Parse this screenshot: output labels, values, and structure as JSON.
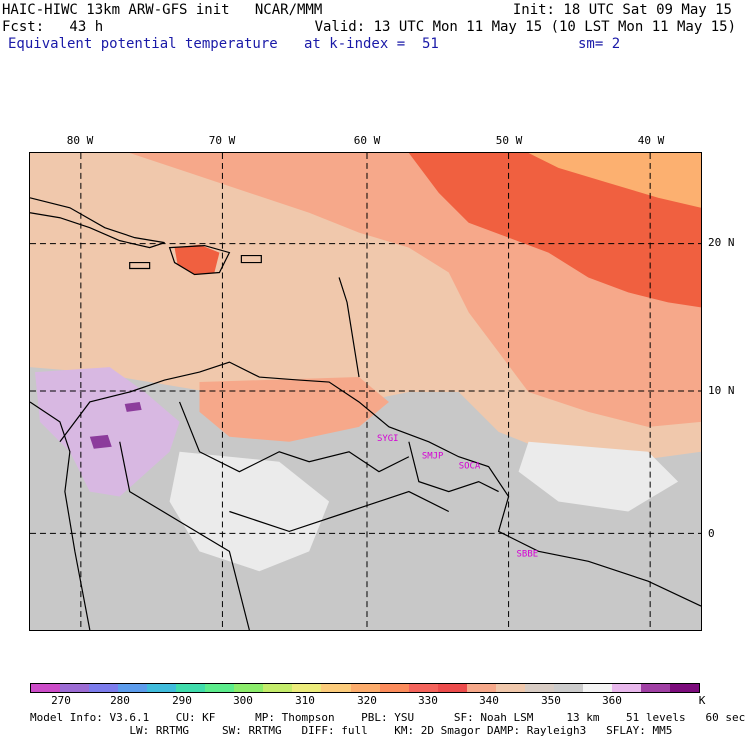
{
  "header": {
    "line1_left": "HAIC-HIWC 13km ARW-GFS init   NCAR/MMM",
    "line1_right": "Init: 18 UTC Sat 09 May 15",
    "line2_left": "Fcst:   43 h",
    "line2_right": "Valid: 13 UTC Mon 11 May 15 (10 LST Mon 11 May 15)",
    "field_name": "Equivalent potential temperature",
    "level_text": "at k-index =  51",
    "smooth_text": "sm= 2"
  },
  "map": {
    "lon_labels": [
      "80 W",
      "70 W",
      "60 W",
      "50 W",
      "40 W"
    ],
    "lat_labels": [
      "20 N",
      "10 N",
      "0"
    ],
    "stations": [
      "SYGI",
      "SMJP",
      "SOCA",
      "SBBE"
    ],
    "colors": {
      "background": "#c8c8c8",
      "warm_light": "#f0c8ac",
      "warm": "#f6a88a",
      "hot": "#f06040",
      "hottest": "#fcb070",
      "cool_light": "#ebebeb",
      "cool": "#d8b8e2",
      "cold": "#8c3c9c",
      "station_text": "#d400d4"
    }
  },
  "colorbar": {
    "colors": [
      "#cc4cc8",
      "#9c6cd4",
      "#7c7cec",
      "#5c9cec",
      "#40bcdc",
      "#40dcac",
      "#5cec8c",
      "#8cec6c",
      "#c4ec6c",
      "#ecec7c",
      "#fccc7c",
      "#fcac6c",
      "#fc8c5c",
      "#f4645c",
      "#ec4c4c",
      "#f6a88a",
      "#f0c8ac",
      "#d8ccc4",
      "#cccccc",
      "#f4f4f4",
      "#e8b8ec",
      "#a040a4",
      "#7c0c7c"
    ],
    "ticks": [
      "270",
      "280",
      "290",
      "300",
      "310",
      "320",
      "330",
      "340",
      "350",
      "360"
    ],
    "unit": "K"
  },
  "footer": {
    "line1": "Model Info: V3.6.1    CU: KF      MP: Thompson    PBL: YSU      SF: Noah LSM     13 km    51 levels   60 sec",
    "line2": "               LW: RRTMG     SW: RRTMG   DIFF: full    KM: 2D Smagor DAMP: Rayleigh3   SFLAY: MM5"
  }
}
